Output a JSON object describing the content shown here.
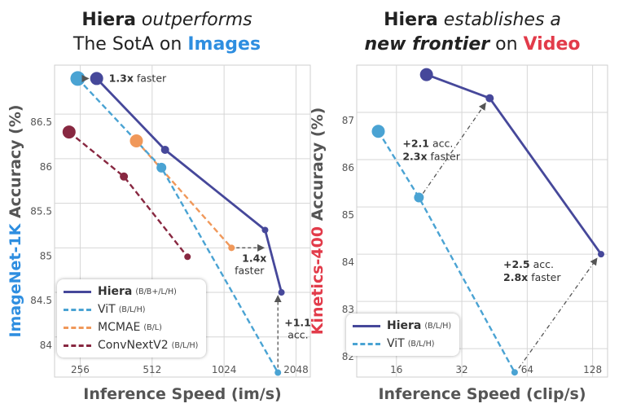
{
  "titles": {
    "left": {
      "line1_bold": "Hiera",
      "line1_italic": "outperforms",
      "line2_pre": "The SotA on",
      "line2_hl": "Images",
      "hl_color": "#2e8ee0"
    },
    "right": {
      "line1_bold": "Hiera",
      "line1_italic": "establishes a",
      "line2_bold_italic": "new frontier",
      "line2_mid": "on",
      "line2_hl": "Video",
      "hl_color": "#e23b4a"
    }
  },
  "chart_data": [
    {
      "type": "line",
      "xlabel": "Inference Speed (im/s)",
      "ylabel": {
        "hl": "ImageNet-1K",
        "rest": "Accuracy (%)"
      },
      "xscale": "log2",
      "xlim": [
        200,
        2350
      ],
      "ylim": [
        83.55,
        87.05
      ],
      "xticks": [
        256,
        512,
        1024,
        2048
      ],
      "yticks": [
        84,
        84.5,
        85,
        85.5,
        86,
        86.5
      ],
      "series": [
        {
          "name": "Hiera",
          "tag": "(B/B+/L/H)",
          "color": "#46489a",
          "dash": "",
          "points": [
            [
              300,
              86.9
            ],
            [
              580,
              86.1
            ],
            [
              1520,
              85.2
            ],
            [
              1780,
              84.5
            ]
          ],
          "sizes": [
            8,
            5,
            4,
            4
          ]
        },
        {
          "name": "ViT",
          "tag": "(B/L/H)",
          "color": "#4aa3d3",
          "dash": "7,4",
          "points": [
            [
              250,
              86.9
            ],
            [
              560,
              85.9
            ],
            [
              1720,
              83.6
            ]
          ],
          "sizes": [
            9,
            6,
            4
          ]
        },
        {
          "name": "MCMAE",
          "tag": "(B/L)",
          "color": "#f0985a",
          "dash": "7,4",
          "points": [
            [
              440,
              86.2
            ],
            [
              1100,
              85.0
            ]
          ],
          "sizes": [
            8,
            4
          ]
        },
        {
          "name": "ConvNextV2",
          "tag": "(B/L/H)",
          "color": "#882841",
          "dash": "7,4",
          "points": [
            [
              230,
              86.3
            ],
            [
              390,
              85.8
            ],
            [
              720,
              84.9
            ]
          ],
          "sizes": [
            8,
            5,
            4
          ]
        }
      ],
      "annotations": [
        {
          "bold": "1.3x",
          "rest": "faster"
        },
        {
          "bold": "1.4x",
          "rest": "faster"
        },
        {
          "bold": "+1.1",
          "rest": "acc."
        }
      ]
    },
    {
      "type": "line",
      "xlabel": "Inference Speed (clip/s)",
      "ylabel": {
        "hl": "Kinetics-400",
        "rest": "Accuracy (%)"
      },
      "xscale": "log2",
      "xlim": [
        10.5,
        150
      ],
      "ylim": [
        81.4,
        88.0
      ],
      "xticks": [
        16,
        32,
        64,
        128
      ],
      "yticks": [
        82,
        83,
        84,
        85,
        86,
        87
      ],
      "series": [
        {
          "name": "Hiera",
          "tag": "(B/L/H)",
          "color": "#46489a",
          "dash": "",
          "points": [
            [
              22,
              87.8
            ],
            [
              43,
              87.3
            ],
            [
              140,
              84.0
            ]
          ],
          "sizes": [
            8,
            5,
            4
          ]
        },
        {
          "name": "ViT",
          "tag": "(B/L/H)",
          "color": "#4aa3d3",
          "dash": "7,4",
          "points": [
            [
              13.2,
              86.6
            ],
            [
              20.3,
              85.2
            ],
            [
              56,
              81.5
            ]
          ],
          "sizes": [
            8,
            6,
            4
          ]
        }
      ],
      "annotations": [
        {
          "line1_bold": "+2.1",
          "line1_rest": "acc.",
          "line2_bold": "2.3x",
          "line2_rest": "faster"
        },
        {
          "line1_bold": "+2.5",
          "line1_rest": "acc.",
          "line2_bold": "2.8x",
          "line2_rest": "faster"
        }
      ]
    }
  ]
}
